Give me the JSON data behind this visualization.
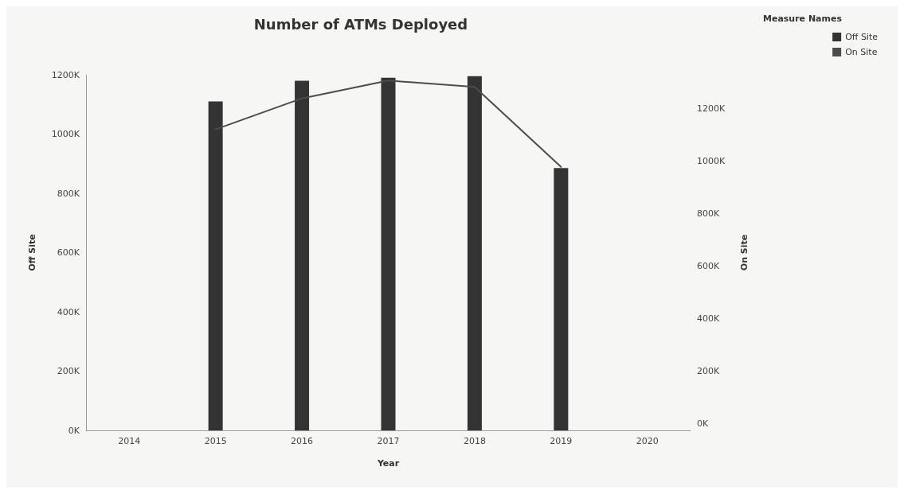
{
  "chart_data": {
    "type": "bar",
    "title": "Number of ATMs Deployed",
    "xlabel": "Year",
    "ylabel": "Off Site",
    "y2label": "On Site",
    "legend_title": "Measure Names",
    "legend": "top right",
    "categories": [
      "2014",
      "2015",
      "2016",
      "2017",
      "2018",
      "2019",
      "2020"
    ],
    "series": [
      {
        "name": "Off Site",
        "color": "#333333",
        "values": [
          null,
          1110000,
          1180000,
          1190000,
          1195000,
          885000,
          null
        ]
      },
      {
        "name": "On Site",
        "type": "line",
        "axis": "y2",
        "color": "#4a4d4a",
        "values": [
          null,
          1122000,
          1240000,
          1308000,
          1284000,
          979000,
          null
        ]
      }
    ],
    "ylim": [
      0,
      1200000
    ],
    "yticks": [
      {
        "value": 0,
        "label": "0K"
      },
      {
        "value": 200000,
        "label": "200K"
      },
      {
        "value": 400000,
        "label": "400K"
      },
      {
        "value": 600000,
        "label": "600K"
      },
      {
        "value": 800000,
        "label": "800K"
      },
      {
        "value": 1000000,
        "label": "1000K"
      },
      {
        "value": 1200000,
        "label": "1200K"
      }
    ],
    "y2lim": [
      -26000,
      1330000
    ],
    "y2ticks": [
      {
        "value": 0,
        "label": "0K"
      },
      {
        "value": 200000,
        "label": "200K"
      },
      {
        "value": 400000,
        "label": "400K"
      },
      {
        "value": 600000,
        "label": "600K"
      },
      {
        "value": 800000,
        "label": "800K"
      },
      {
        "value": 1000000,
        "label": "1000K"
      },
      {
        "value": 1200000,
        "label": "1200K"
      }
    ]
  }
}
